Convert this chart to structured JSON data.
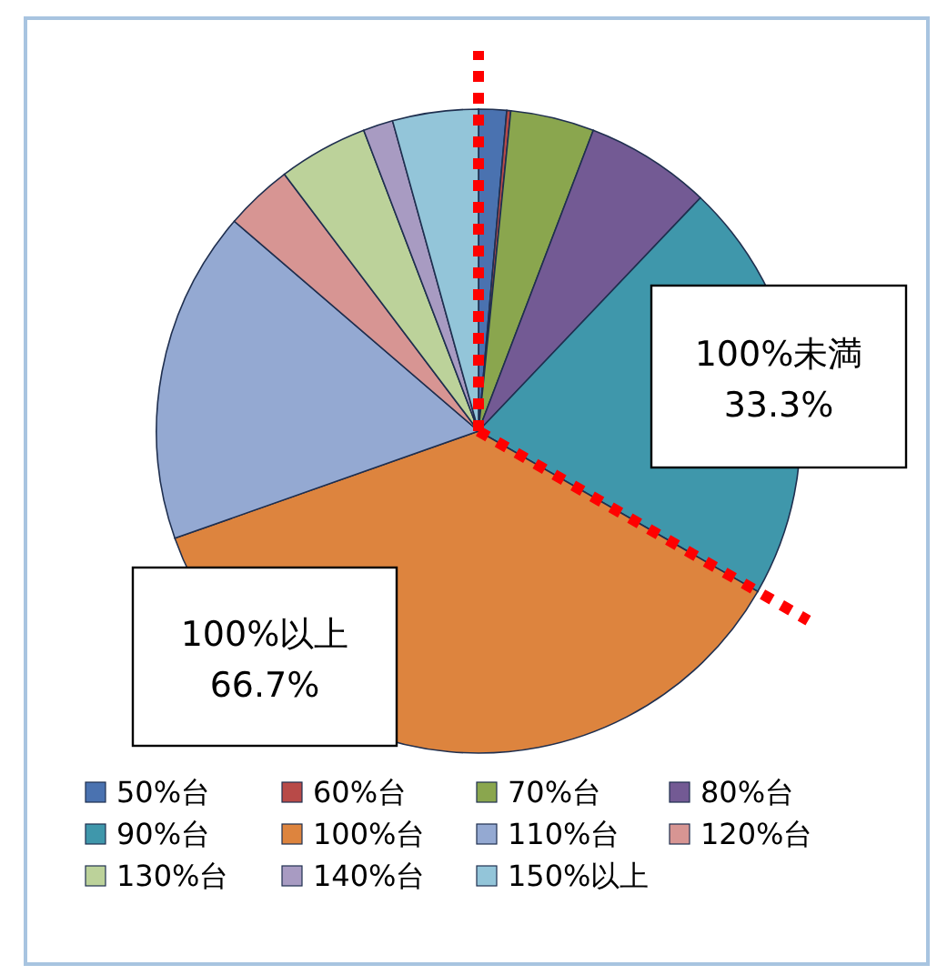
{
  "chart_data": {
    "type": "pie",
    "legend": "bottom",
    "categories": [
      "50%台",
      "60%台",
      "70%台",
      "80%台",
      "90%台",
      "100%台",
      "110%台",
      "120%台",
      "130%台",
      "140%台",
      "150%以上"
    ],
    "values": [
      1.4,
      0.2,
      4.2,
      6.3,
      21.2,
      36.3,
      16.7,
      3.4,
      4.5,
      1.5,
      4.3
    ],
    "colors": [
      "#4a72b0",
      "#b84a48",
      "#8aa64e",
      "#735a94",
      "#3f97ab",
      "#dd843e",
      "#94a9d2",
      "#d79593",
      "#bcd29a",
      "#a89bc2",
      "#93c5d9"
    ],
    "annotations": [
      "100%未満",
      "33.3%",
      "100%以上",
      "66.7%"
    ]
  }
}
